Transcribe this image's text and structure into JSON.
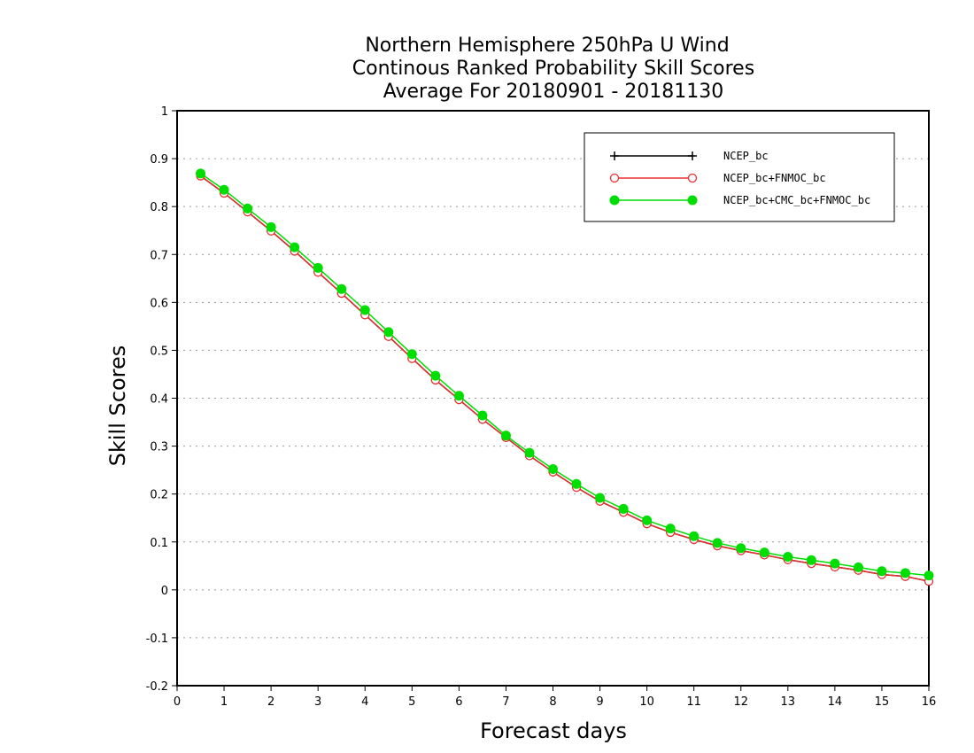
{
  "chart_data": {
    "type": "line",
    "title": [
      "Northern Hemisphere 250hPa U Wind",
      "Continous Ranked Probability Skill Scores",
      "Average For 20180901 - 20181130"
    ],
    "xlabel": "Forecast days",
    "ylabel": "Skill Scores",
    "xlim": [
      0,
      16
    ],
    "ylim": [
      -0.2,
      1
    ],
    "xticks": [
      "0",
      "1",
      "2",
      "3",
      "4",
      "5",
      "6",
      "7",
      "8",
      "9",
      "10",
      "11",
      "12",
      "13",
      "14",
      "15",
      "16"
    ],
    "yticks": [
      "-0.2",
      "-0.1",
      "0",
      "0.1",
      "0.2",
      "0.3",
      "0.4",
      "0.5",
      "0.6",
      "0.7",
      "0.8",
      "0.9",
      "1"
    ],
    "grid": true,
    "legend_position": "top-right",
    "x": [
      0.5,
      1,
      1.5,
      2,
      2.5,
      3,
      3.5,
      4,
      4.5,
      5,
      5.5,
      6,
      6.5,
      7,
      7.5,
      8,
      8.5,
      9,
      9.5,
      10,
      10.5,
      11,
      11.5,
      12,
      12.5,
      13,
      13.5,
      14,
      14.5,
      15,
      15.5,
      16
    ],
    "series": [
      {
        "name": "NCEP_bc",
        "color": "#000000",
        "marker": "plus",
        "values": [
          0.864,
          0.828,
          0.789,
          0.749,
          0.707,
          0.663,
          0.619,
          0.574,
          0.529,
          0.483,
          0.438,
          0.397,
          0.356,
          0.318,
          0.28,
          0.246,
          0.214,
          0.185,
          0.162,
          0.138,
          0.12,
          0.105,
          0.092,
          0.082,
          0.073,
          0.063,
          0.055,
          0.048,
          0.041,
          0.032,
          0.028,
          0.018
        ]
      },
      {
        "name": "NCEP_bc+FNMOC_bc",
        "color": "#e83030",
        "marker": "open-circle",
        "values": [
          0.864,
          0.828,
          0.789,
          0.749,
          0.707,
          0.663,
          0.619,
          0.574,
          0.529,
          0.483,
          0.438,
          0.397,
          0.356,
          0.318,
          0.28,
          0.246,
          0.214,
          0.185,
          0.162,
          0.138,
          0.12,
          0.105,
          0.092,
          0.082,
          0.073,
          0.063,
          0.055,
          0.048,
          0.041,
          0.032,
          0.028,
          0.018
        ]
      },
      {
        "name": "NCEP_bc+CMC_bc+FNMOC_bc",
        "color": "#00dd00",
        "marker": "filled-circle",
        "values": [
          0.869,
          0.835,
          0.796,
          0.757,
          0.715,
          0.672,
          0.628,
          0.584,
          0.538,
          0.492,
          0.447,
          0.405,
          0.364,
          0.322,
          0.286,
          0.252,
          0.221,
          0.192,
          0.169,
          0.145,
          0.128,
          0.112,
          0.098,
          0.087,
          0.078,
          0.069,
          0.062,
          0.055,
          0.047,
          0.039,
          0.035,
          0.03
        ]
      }
    ]
  }
}
